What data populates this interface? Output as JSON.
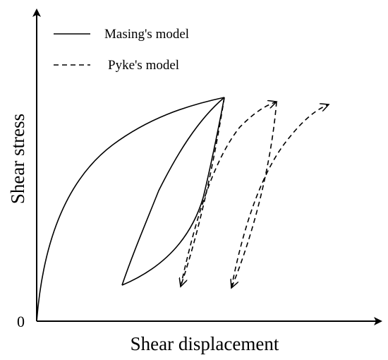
{
  "figure": {
    "xlabel": "Shear displacement",
    "ylabel": "Shear stress",
    "origin_label": "0",
    "legend": [
      {
        "label": "Masing's model",
        "style": "solid"
      },
      {
        "label": "Pyke's model",
        "style": "dashed"
      }
    ],
    "colors": {
      "line": "#000000",
      "background": "#ffffff"
    }
  }
}
